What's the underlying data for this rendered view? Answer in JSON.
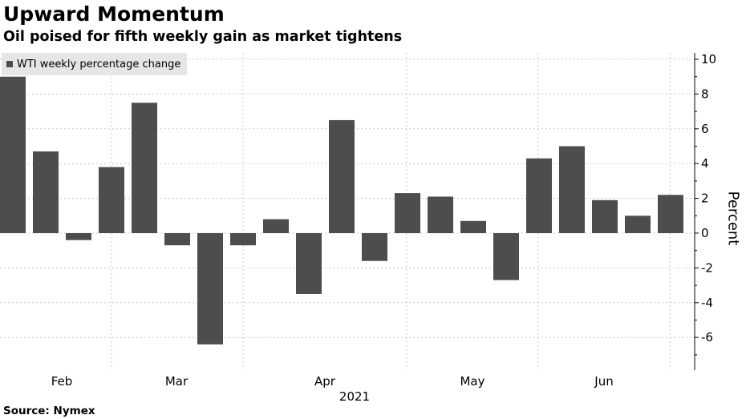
{
  "header": {
    "title": "Upward Momentum",
    "subtitle": "Oil poised for fifth weekly gain as market tightens"
  },
  "footer": {
    "source": "Source: Nymex"
  },
  "colors": {
    "bar": "#4d4d4d",
    "grid": "#c8c8c8",
    "axis": "#000000"
  },
  "chart_data": {
    "type": "bar",
    "title": "Upward Momentum",
    "subtitle": "Oil poised for fifth weekly gain as market tightens",
    "ylabel": "Percent",
    "xlabel": "2021",
    "ylim": [
      -8,
      10.5
    ],
    "yticks": [
      -6,
      -4,
      -2,
      0,
      2,
      4,
      6,
      8,
      10
    ],
    "month_labels": [
      "Feb",
      "Mar",
      "Apr",
      "May",
      "Jun"
    ],
    "year_label": "2021",
    "legend": {
      "position": "top-left"
    },
    "grid": true,
    "series": [
      {
        "name": "WTI weekly percentage change",
        "values": [
          9.0,
          4.7,
          -0.4,
          3.8,
          7.5,
          -0.7,
          -6.4,
          -0.7,
          0.8,
          -3.5,
          6.5,
          -1.6,
          2.3,
          2.1,
          0.7,
          -2.7,
          4.3,
          5.0,
          1.9,
          1.0,
          2.2
        ]
      }
    ]
  }
}
